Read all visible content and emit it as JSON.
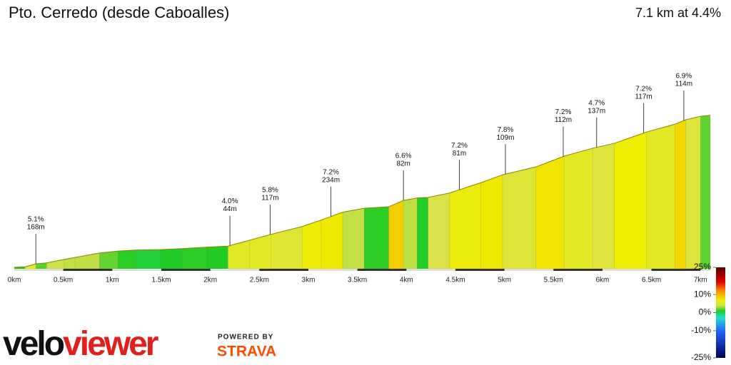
{
  "chart_data": {
    "type": "area",
    "title": "Pto. Cerredo (desde Caboalles)",
    "subtitle": "7.1 km at 4.4%",
    "x": [
      0,
      0.11,
      0.22,
      0.33,
      0.51,
      0.62,
      0.87,
      1.06,
      1.24,
      1.49,
      1.71,
      1.97,
      2.18,
      2.4,
      2.62,
      2.94,
      3.13,
      3.35,
      3.57,
      3.82,
      3.97,
      4.11,
      4.22,
      4.44,
      4.76,
      4.98,
      5.32,
      5.61,
      5.9,
      6.12,
      6.45,
      6.74,
      6.85,
      7.0,
      7.1
    ],
    "values": [
      3,
      4,
      10,
      12,
      19,
      23,
      32,
      36,
      38,
      39,
      41,
      44,
      46,
      58,
      70,
      86,
      99,
      115,
      123,
      126,
      139,
      144,
      145,
      154,
      175,
      191,
      207,
      229,
      245,
      255,
      278,
      294,
      303,
      310,
      312
    ],
    "xlim": [
      0,
      7.1
    ],
    "ylim": [
      0,
      400
    ],
    "xticks": [
      {
        "value": 0,
        "label": "0km"
      },
      {
        "value": 0.5,
        "label": "0.5km"
      },
      {
        "value": 1,
        "label": "1km"
      },
      {
        "value": 1.5,
        "label": "1.5km"
      },
      {
        "value": 2,
        "label": "2km"
      },
      {
        "value": 2.5,
        "label": "2.5km"
      },
      {
        "value": 3,
        "label": "3km"
      },
      {
        "value": 3.5,
        "label": "3.5km"
      },
      {
        "value": 4,
        "label": "4km"
      },
      {
        "value": 4.5,
        "label": "4.5km"
      },
      {
        "value": 5,
        "label": "5km"
      },
      {
        "value": 5.5,
        "label": "5.5km"
      },
      {
        "value": 6,
        "label": "6km"
      },
      {
        "value": 6.5,
        "label": "6.5km"
      },
      {
        "value": 7,
        "label": "7km"
      }
    ],
    "annotations": [
      {
        "x": 0.22,
        "grade": "5.1%",
        "length": "168m"
      },
      {
        "x": 2.2,
        "grade": "4.0%",
        "length": "44m"
      },
      {
        "x": 2.61,
        "grade": "5.8%",
        "length": "117m"
      },
      {
        "x": 3.23,
        "grade": "7.2%",
        "length": "234m"
      },
      {
        "x": 3.97,
        "grade": "6.6%",
        "length": "82m"
      },
      {
        "x": 4.54,
        "grade": "7.2%",
        "length": "81m"
      },
      {
        "x": 5.01,
        "grade": "7.8%",
        "length": "109m"
      },
      {
        "x": 5.6,
        "grade": "7.2%",
        "length": "112m"
      },
      {
        "x": 5.94,
        "grade": "4.7%",
        "length": "137m"
      },
      {
        "x": 6.42,
        "grade": "7.2%",
        "length": "117m"
      },
      {
        "x": 6.83,
        "grade": "6.9%",
        "length": "114m"
      }
    ],
    "gradient_lim": [
      -25,
      25
    ],
    "gradient_ticks": [
      {
        "value": 25,
        "label": "25%"
      },
      {
        "value": 10,
        "label": "10%"
      },
      {
        "value": 0,
        "label": "0%"
      },
      {
        "value": -10,
        "label": "-10%"
      },
      {
        "value": -25,
        "label": "-25%"
      }
    ],
    "colorscale": [
      {
        "value": 25,
        "color": "#5a0000"
      },
      {
        "value": 17,
        "color": "#e00000"
      },
      {
        "value": 12,
        "color": "#ff8c00"
      },
      {
        "value": 7,
        "color": "#eeee00"
      },
      {
        "value": 4,
        "color": "#d8e24a"
      },
      {
        "value": 1,
        "color": "#22cc22"
      },
      {
        "value": -3,
        "color": "#22ddcc"
      },
      {
        "value": -10,
        "color": "#2266ff"
      },
      {
        "value": -25,
        "color": "#000055"
      }
    ]
  },
  "branding": {
    "logo_a": "velo",
    "logo_b": "viewer",
    "powered": "POWERED BY",
    "strava": "STRAVA"
  }
}
